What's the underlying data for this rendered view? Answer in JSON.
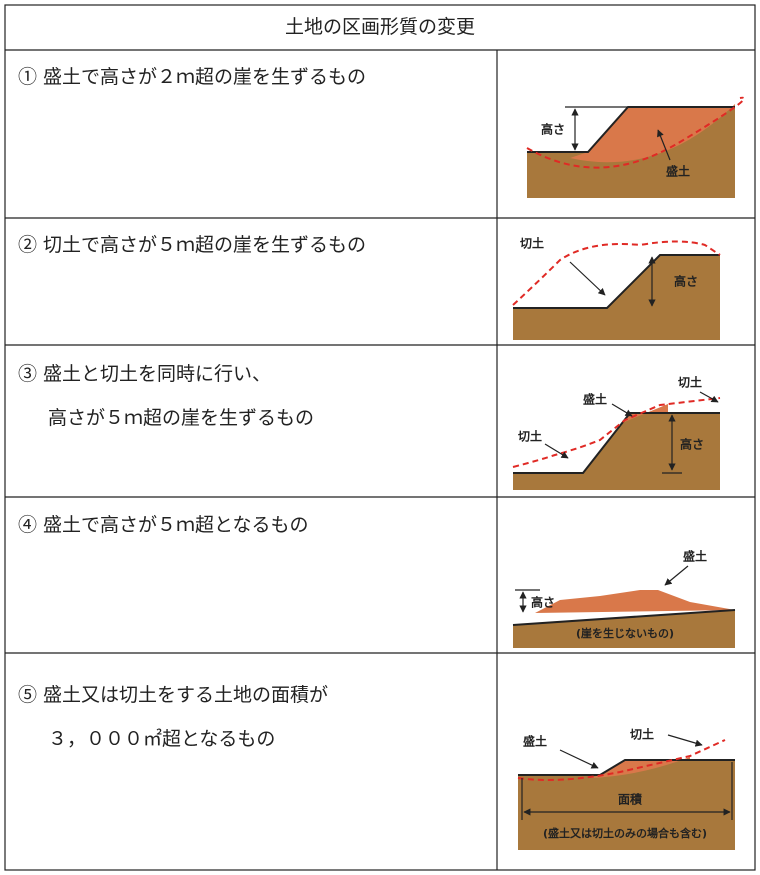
{
  "table": {
    "header": "土地の区画形質の変更",
    "rows": [
      {
        "text": [
          "① 盛土で高さが２ｍ超の崖を生ずるもの"
        ],
        "figure": [
          "高さ",
          "盛土"
        ]
      },
      {
        "text": [
          "② 切土で高さが５ｍ超の崖を生ずるもの"
        ],
        "figure": [
          "切土",
          "高さ"
        ]
      },
      {
        "text": [
          "③ 盛土と切土を同時に行い、",
          "高さが５ｍ超の崖を生ずるもの"
        ],
        "figure": [
          "盛土",
          "切土",
          "切土",
          "高さ"
        ]
      },
      {
        "text": [
          "④ 盛土で高さが５ｍ超となるもの"
        ],
        "figure": [
          "盛土",
          "高さ",
          "(崖を生じないもの)"
        ]
      },
      {
        "text": [
          "⑤ 盛土又は切土をする土地の面積が",
          "３，０００㎡超となるもの"
        ],
        "figure": [
          "盛土",
          "切土",
          "面積",
          "(盛土又は切土のみの場合も含む)"
        ]
      }
    ]
  }
}
